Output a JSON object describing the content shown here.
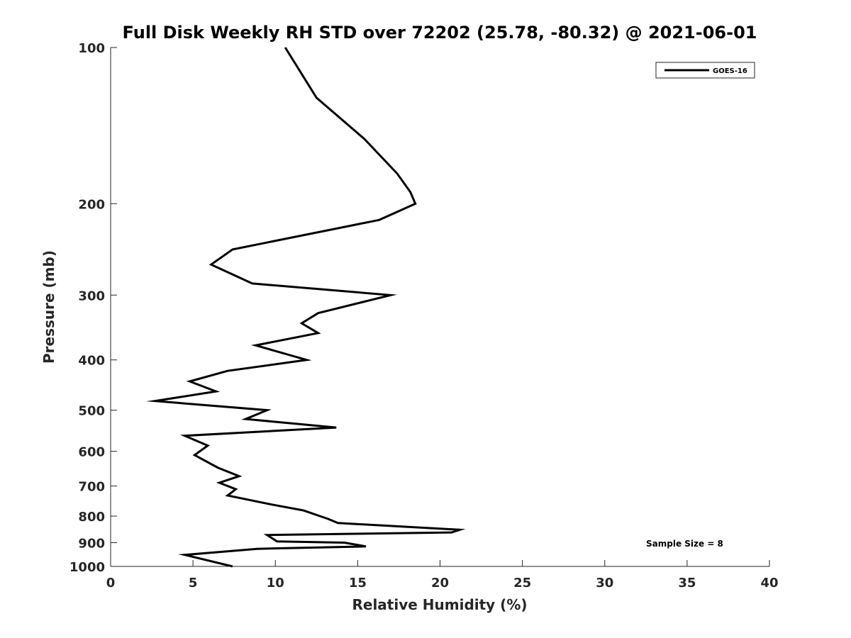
{
  "chart_data": {
    "type": "line",
    "title": "Full Disk Weekly RH STD over 72202 (25.78, -80.32) @ 2021-06-01",
    "xlabel": "Relative Humidity (%)",
    "ylabel": "Pressure (mb)",
    "xlim": [
      0,
      40
    ],
    "ylim": [
      100,
      1000
    ],
    "y_scale": "log",
    "y_reversed": true,
    "x_ticks": [
      0,
      5,
      10,
      15,
      20,
      25,
      30,
      35,
      40
    ],
    "y_ticks": [
      100,
      200,
      300,
      400,
      500,
      600,
      700,
      800,
      900,
      1000
    ],
    "grid": false,
    "legend_position": "top-right",
    "series": [
      {
        "name": "GOES-16",
        "color": "#000000",
        "points": [
          [
            10.6,
            100
          ],
          [
            12.5,
            125
          ],
          [
            15.4,
            150
          ],
          [
            17.4,
            175
          ],
          [
            18.2,
            190
          ],
          [
            18.5,
            200
          ],
          [
            16.3,
            215
          ],
          [
            7.4,
            245
          ],
          [
            6.1,
            262
          ],
          [
            8.6,
            285
          ],
          [
            17.0,
            300
          ],
          [
            12.6,
            325
          ],
          [
            11.6,
            340
          ],
          [
            12.6,
            355
          ],
          [
            8.8,
            375
          ],
          [
            11.9,
            400
          ],
          [
            7.1,
            420
          ],
          [
            4.8,
            440
          ],
          [
            6.4,
            460
          ],
          [
            2.7,
            480
          ],
          [
            9.5,
            500
          ],
          [
            8.2,
            520
          ],
          [
            13.7,
            540
          ],
          [
            4.5,
            560
          ],
          [
            5.9,
            585
          ],
          [
            5.1,
            610
          ],
          [
            6.5,
            645
          ],
          [
            7.8,
            670
          ],
          [
            6.6,
            690
          ],
          [
            7.6,
            710
          ],
          [
            7.1,
            730
          ],
          [
            9.8,
            760
          ],
          [
            11.7,
            780
          ],
          [
            13.2,
            810
          ],
          [
            13.8,
            825
          ],
          [
            21.2,
            850
          ],
          [
            20.7,
            860
          ],
          [
            9.5,
            870
          ],
          [
            10.1,
            895
          ],
          [
            14.2,
            900
          ],
          [
            15.5,
            915
          ],
          [
            8.9,
            925
          ],
          [
            4.5,
            950
          ],
          [
            7.4,
            1000
          ]
        ]
      }
    ],
    "annotations": [
      "Sample Size = 8"
    ]
  }
}
